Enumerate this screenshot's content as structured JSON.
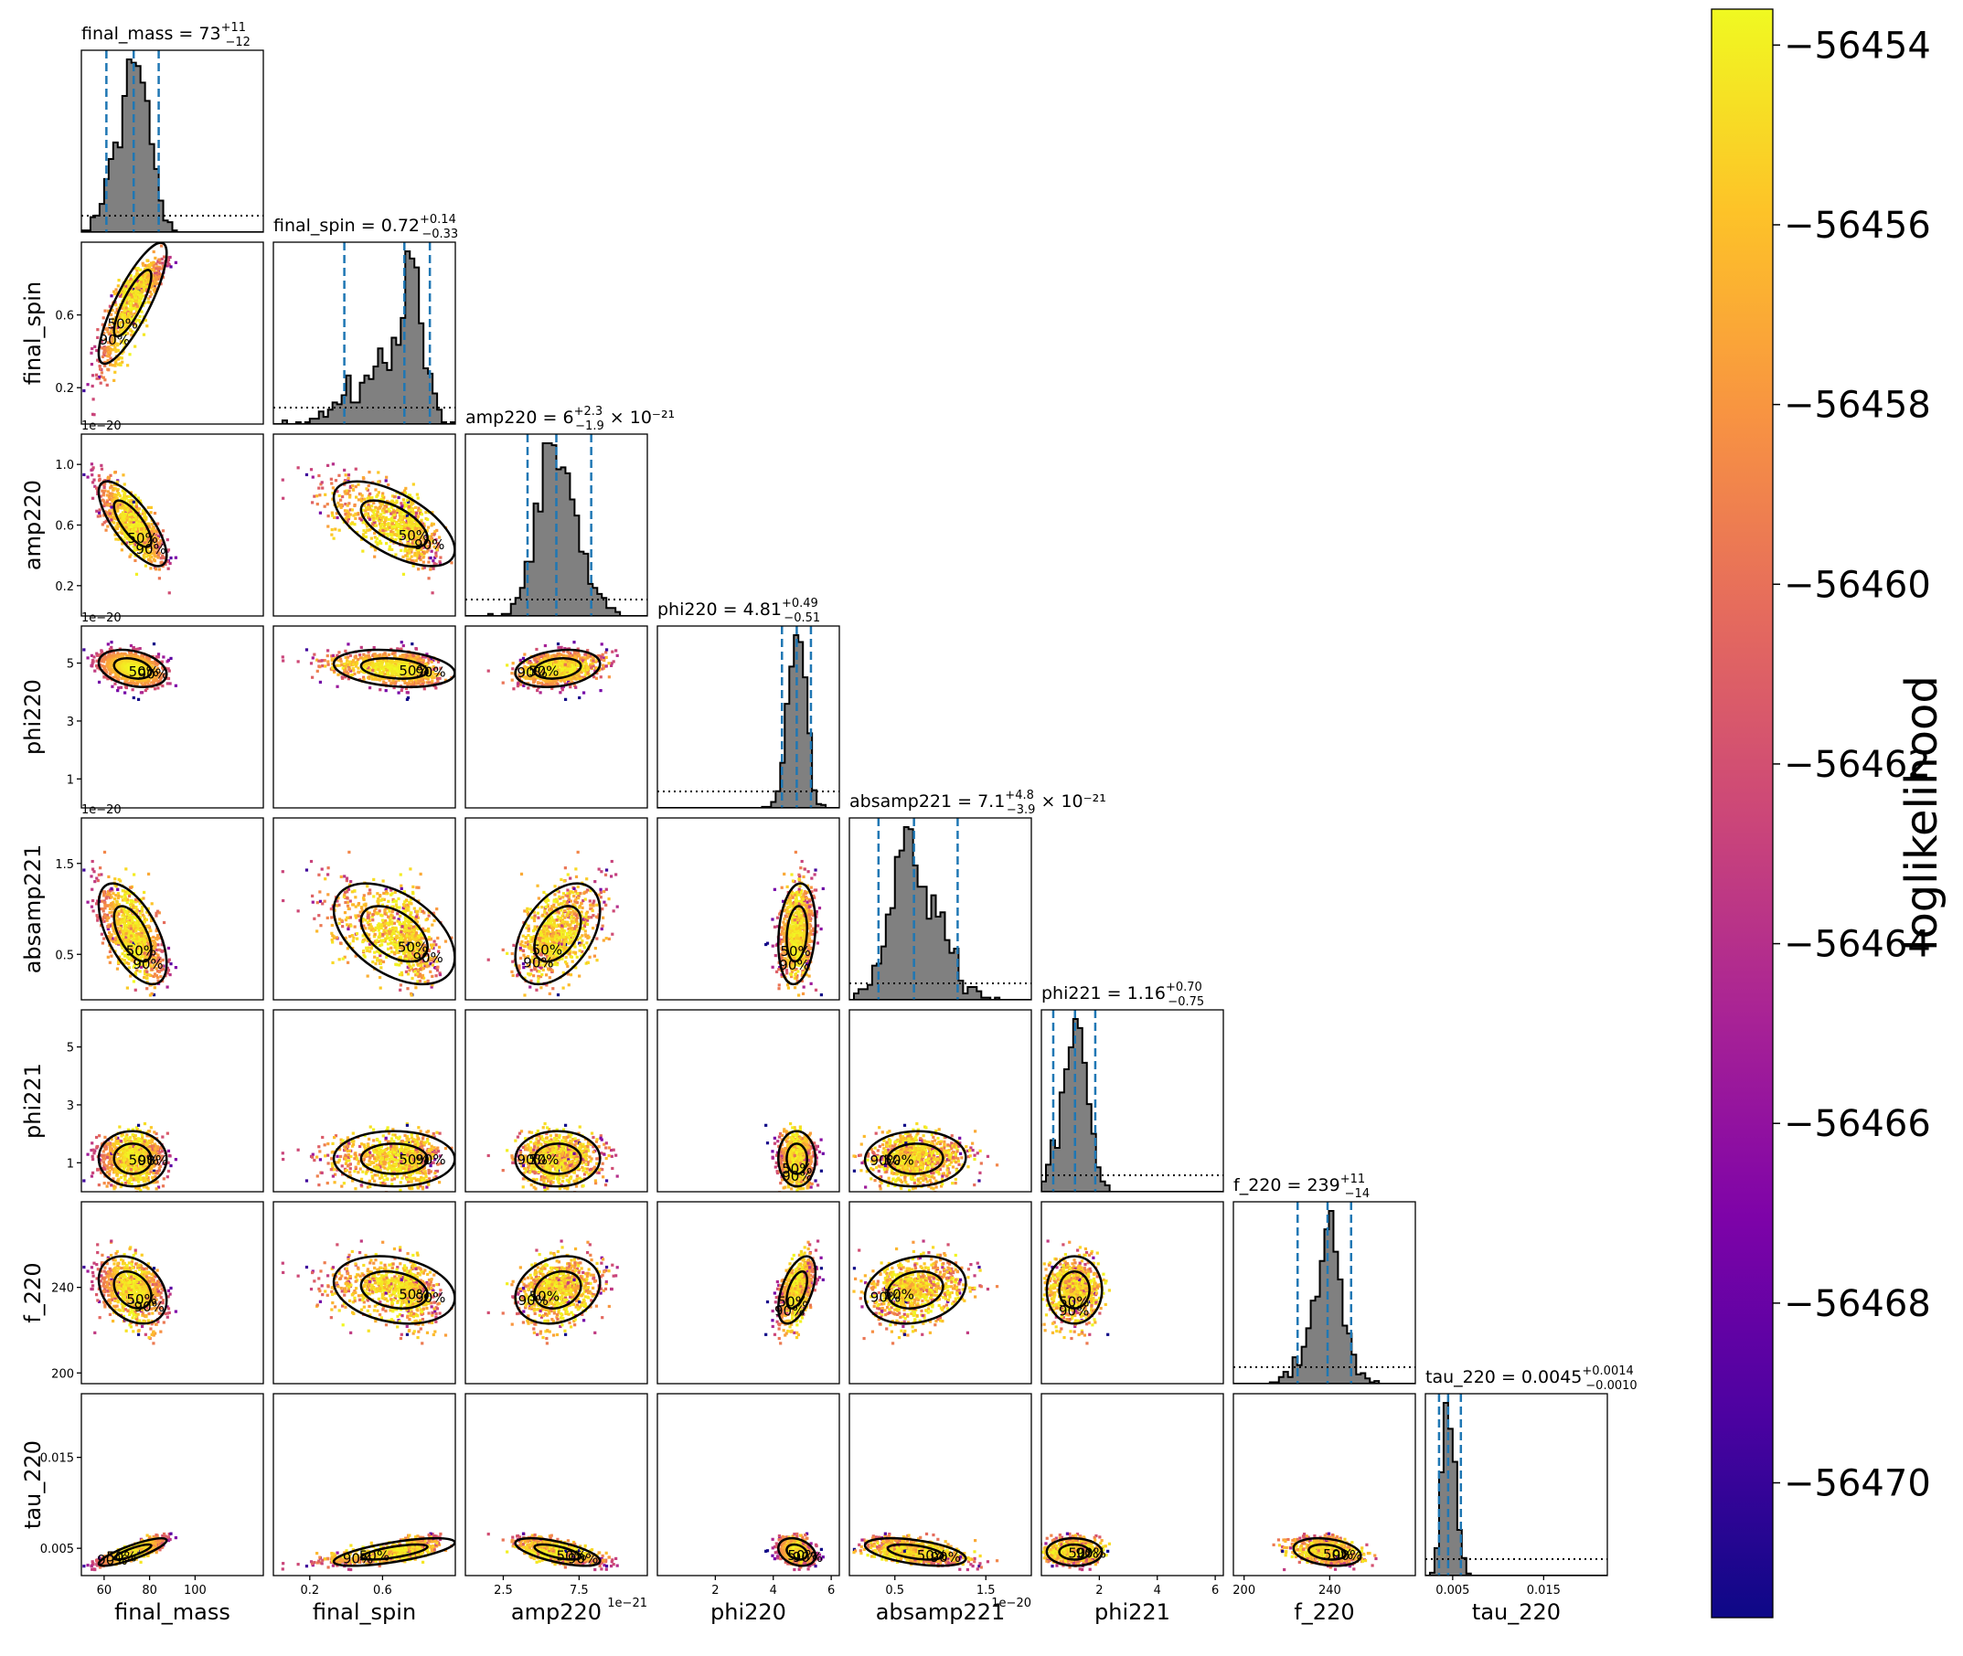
{
  "chart_data": {
    "type": "scatter",
    "subtype": "corner-plot",
    "parameters": [
      "final_mass",
      "final_spin",
      "amp220",
      "phi220",
      "absamp221",
      "phi221",
      "f_220",
      "tau_220"
    ],
    "axis_labels": [
      "final_mass",
      "final_spin",
      "amp220",
      "phi220",
      "absamp221",
      "phi221",
      "f_220",
      "tau_220"
    ],
    "ranges": [
      [
        50,
        130
      ],
      [
        0.0,
        1.0
      ],
      [
        0.0,
        1.2e-20
      ],
      [
        0.0,
        6.28
      ],
      [
        0.0,
        2e-20
      ],
      [
        0.0,
        6.28
      ],
      [
        195,
        280
      ],
      [
        0.002,
        0.022
      ]
    ],
    "x_ticks": [
      [
        {
          "v": 60,
          "t": "60"
        },
        {
          "v": 80,
          "t": "80"
        },
        {
          "v": 100,
          "t": "100"
        }
      ],
      [
        {
          "v": 0.2,
          "t": "0.2"
        },
        {
          "v": 0.6,
          "t": "0.6"
        }
      ],
      [
        {
          "v": 2.5e-21,
          "t": "2.5"
        },
        {
          "v": 7.5e-21,
          "t": "7.5"
        }
      ],
      [
        {
          "v": 2,
          "t": "2"
        },
        {
          "v": 4,
          "t": "4"
        },
        {
          "v": 6,
          "t": "6"
        }
      ],
      [
        {
          "v": 5e-21,
          "t": "0.5"
        },
        {
          "v": 1.5e-20,
          "t": "1.5"
        }
      ],
      [
        {
          "v": 2,
          "t": "2"
        },
        {
          "v": 4,
          "t": "4"
        },
        {
          "v": 6,
          "t": "6"
        }
      ],
      [
        {
          "v": 200,
          "t": "200"
        },
        {
          "v": 240,
          "t": "240"
        }
      ],
      [
        {
          "v": 0.005,
          "t": "0.005"
        },
        {
          "v": 0.015,
          "t": "0.015"
        }
      ]
    ],
    "y_ticks": [
      null,
      [
        {
          "v": 0.2,
          "t": "0.2"
        },
        {
          "v": 0.6,
          "t": "0.6"
        }
      ],
      [
        {
          "v": 2e-21,
          "t": "0.2"
        },
        {
          "v": 6e-21,
          "t": "0.6"
        },
        {
          "v": 1e-20,
          "t": "1.0"
        }
      ],
      [
        {
          "v": 1,
          "t": "1"
        },
        {
          "v": 3,
          "t": "3"
        },
        {
          "v": 5,
          "t": "5"
        }
      ],
      [
        {
          "v": 5e-21,
          "t": "0.5"
        },
        {
          "v": 1.5e-20,
          "t": "1.5"
        }
      ],
      [
        {
          "v": 1,
          "t": "1"
        },
        {
          "v": 3,
          "t": "3"
        },
        {
          "v": 5,
          "t": "5"
        }
      ],
      [
        {
          "v": 200,
          "t": "200"
        },
        {
          "v": 240,
          "t": "240"
        }
      ],
      [
        {
          "v": 0.005,
          "t": "0.005"
        },
        {
          "v": 0.015,
          "t": "0.015"
        }
      ]
    ],
    "x_offsets": [
      "",
      "",
      "1e−21",
      "",
      "1e−20",
      "",
      "",
      ""
    ],
    "y_offsets": [
      "",
      "",
      "1e−20",
      "1e−20",
      "1e−20",
      "",
      "",
      ""
    ],
    "marginals": [
      {
        "median": 73,
        "lower": 61,
        "upper": 84,
        "title": "final_mass = 73",
        "sup": "+11",
        "sub": "−12",
        "suffix": ""
      },
      {
        "median": 0.72,
        "lower": 0.39,
        "upper": 0.86,
        "title": "final_spin = 0.72",
        "sup": "+0.14",
        "sub": "−0.33",
        "suffix": ""
      },
      {
        "median": 6e-21,
        "lower": 4.1e-21,
        "upper": 8.3e-21,
        "title": "amp220 = 6",
        "sup": "+2.3",
        "sub": "−1.9",
        "suffix": " × 10⁻²¹"
      },
      {
        "median": 4.81,
        "lower": 4.3,
        "upper": 5.3,
        "title": "phi220 = 4.81",
        "sup": "+0.49",
        "sub": "−0.51",
        "suffix": ""
      },
      {
        "median": 7.1e-21,
        "lower": 3.2e-21,
        "upper": 1.19e-20,
        "title": "absamp221 = 7.1",
        "sup": "+4.8",
        "sub": "−3.9",
        "suffix": " × 10⁻²¹"
      },
      {
        "median": 1.16,
        "lower": 0.41,
        "upper": 1.86,
        "title": "phi221 = 1.16",
        "sup": "+0.70",
        "sub": "−0.75",
        "suffix": ""
      },
      {
        "median": 239,
        "lower": 225,
        "upper": 250,
        "title": "f_220 = 239",
        "sup": "+11",
        "sub": "−14",
        "suffix": ""
      },
      {
        "median": 0.0045,
        "lower": 0.0035,
        "upper": 0.0059,
        "title": "tau_220 = 0.0045",
        "sup": "+0.0014",
        "sub": "−0.0010",
        "suffix": ""
      }
    ],
    "contour_labels": [
      "50%",
      "90%"
    ],
    "colorbar": {
      "label": "loglikelihood",
      "min": -56471.5,
      "max": -56453.6,
      "ticks": [
        -56454,
        -56456,
        -56458,
        -56460,
        -56462,
        -56464,
        -56466,
        -56468,
        -56470
      ],
      "tick_labels": [
        "−56454",
        "−56456",
        "−56458",
        "−56460",
        "−56462",
        "−56464",
        "−56466",
        "−56468",
        "−56470"
      ],
      "colormap": "plasma"
    },
    "colors": {
      "quantile_line": "#1f77b4",
      "histogram_fill": "#808080",
      "contour": "#000000"
    }
  }
}
